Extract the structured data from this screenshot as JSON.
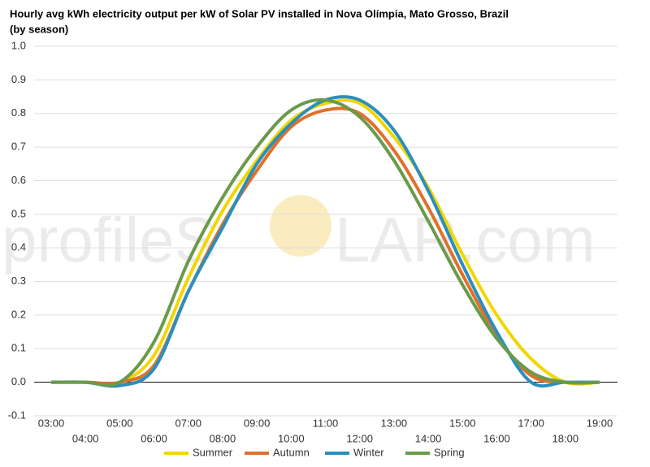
{
  "chart_data": {
    "type": "line",
    "title": "Hourly avg kWh electricity output per kW of Solar PV installed in Nova Olímpia, Mato Grosso, Brazil (by season)",
    "watermark_left": "profileS",
    "watermark_right": "LAR.com",
    "categories": [
      "03:00",
      "04:00",
      "05:00",
      "06:00",
      "07:00",
      "08:00",
      "09:00",
      "10:00",
      "11:00",
      "12:00",
      "13:00",
      "14:00",
      "15:00",
      "16:00",
      "17:00",
      "18:00",
      "19:00"
    ],
    "series": [
      {
        "name": "Summer",
        "color": "#f2d600",
        "values": [
          0,
          0,
          0,
          0.08,
          0.31,
          0.51,
          0.66,
          0.78,
          0.83,
          0.83,
          0.73,
          0.58,
          0.38,
          0.2,
          0.07,
          0,
          0
        ]
      },
      {
        "name": "Autumn",
        "color": "#e0702a",
        "values": [
          0,
          0,
          0,
          0.05,
          0.27,
          0.47,
          0.63,
          0.76,
          0.81,
          0.8,
          0.69,
          0.52,
          0.32,
          0.14,
          0.02,
          0,
          0
        ]
      },
      {
        "name": "Winter",
        "color": "#2a8fbd",
        "values": [
          0,
          0,
          -0.01,
          0.04,
          0.27,
          0.46,
          0.65,
          0.77,
          0.84,
          0.84,
          0.75,
          0.57,
          0.35,
          0.15,
          0,
          0,
          0
        ]
      },
      {
        "name": "Spring",
        "color": "#6a9a4a",
        "values": [
          0,
          0,
          0,
          0.12,
          0.36,
          0.55,
          0.7,
          0.81,
          0.84,
          0.79,
          0.66,
          0.48,
          0.29,
          0.13,
          0.03,
          0,
          0
        ]
      }
    ],
    "ylim": [
      -0.1,
      1.0
    ],
    "yticks": [
      {
        "value": -0.1,
        "label": "-0.1"
      },
      {
        "value": 0,
        "label": "0.0"
      },
      0.1,
      0.2,
      0.3,
      0.4,
      0.5,
      0.6,
      0.7,
      0.8,
      0.9,
      {
        "value": 1,
        "label": "1.0"
      }
    ],
    "grid": true,
    "legend": "bottom"
  }
}
